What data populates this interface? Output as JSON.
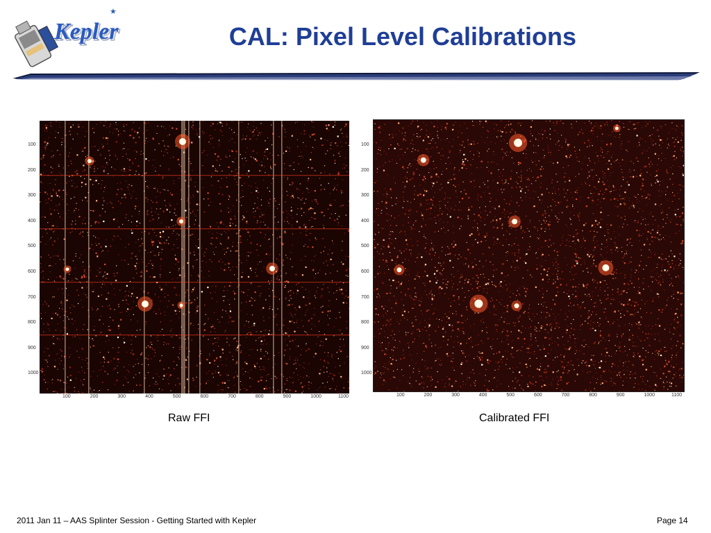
{
  "header": {
    "logo_text": "Kepler",
    "title": "CAL: Pixel Level Calibrations"
  },
  "panels": {
    "raw": {
      "caption": "Raw FFI",
      "y_ticks": [
        "100",
        "200",
        "300",
        "400",
        "500",
        "600",
        "700",
        "800",
        "900",
        "1000"
      ],
      "x_ticks": [
        "100",
        "200",
        "300",
        "400",
        "500",
        "600",
        "700",
        "800",
        "900",
        "1000",
        "1100"
      ]
    },
    "calibrated": {
      "caption": "Calibrated FFI",
      "y_ticks": [
        "100",
        "200",
        "300",
        "400",
        "500",
        "600",
        "700",
        "800",
        "900",
        "1000"
      ],
      "x_ticks": [
        "100",
        "200",
        "300",
        "400",
        "500",
        "600",
        "700",
        "800",
        "900",
        "1000",
        "1100"
      ]
    }
  },
  "footer": {
    "left": "2011 Jan 11 – AAS Splinter Session - Getting Started with Kepler",
    "right": "Page 14"
  },
  "colors": {
    "title": "#1f3e96",
    "rule": "#1a2a5e",
    "image_background": "#140202"
  }
}
